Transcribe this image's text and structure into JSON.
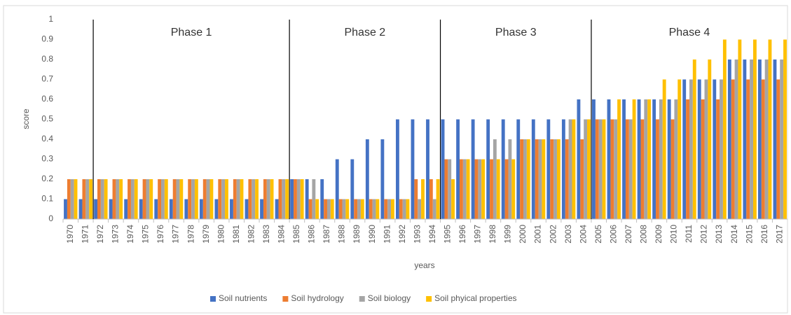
{
  "chart_data": {
    "type": "bar",
    "x_label": "years",
    "y_label": "score",
    "categories": [
      "1970",
      "1971",
      "1972",
      "1973",
      "1974",
      "1975",
      "1976",
      "1977",
      "1978",
      "1979",
      "1980",
      "1981",
      "1982",
      "1983",
      "1984",
      "1985",
      "1986",
      "1987",
      "1988",
      "1989",
      "1990",
      "1991",
      "1992",
      "1993",
      "1994",
      "1995",
      "1996",
      "1997",
      "1998",
      "1999",
      "2000",
      "2001",
      "2002",
      "2003",
      "2004",
      "2005",
      "2006",
      "2007",
      "2008",
      "2009",
      "2010",
      "2011",
      "2012",
      "2013",
      "2014",
      "2015",
      "2016",
      "2017"
    ],
    "series": [
      {
        "name": "Soil nutrients",
        "color": "#4472c4",
        "values": [
          0.1,
          0.1,
          0.1,
          0.1,
          0.1,
          0.1,
          0.1,
          0.1,
          0.1,
          0.1,
          0.1,
          0.1,
          0.1,
          0.1,
          0.1,
          0.2,
          0.2,
          0.2,
          0.3,
          0.3,
          0.4,
          0.4,
          0.5,
          0.5,
          0.5,
          0.5,
          0.5,
          0.5,
          0.5,
          0.5,
          0.5,
          0.5,
          0.5,
          0.5,
          0.6,
          0.6,
          0.6,
          0.6,
          0.6,
          0.6,
          0.6,
          0.7,
          0.7,
          0.7,
          0.8,
          0.8,
          0.8,
          0.8
        ]
      },
      {
        "name": "Soil hydrology",
        "color": "#ed7d31",
        "values": [
          0.2,
          0.2,
          0.2,
          0.2,
          0.2,
          0.2,
          0.2,
          0.2,
          0.2,
          0.2,
          0.2,
          0.2,
          0.2,
          0.2,
          0.2,
          0.2,
          0.1,
          0.1,
          0.1,
          0.1,
          0.1,
          0.1,
          0.1,
          0.2,
          0.2,
          0.3,
          0.3,
          0.3,
          0.3,
          0.3,
          0.4,
          0.4,
          0.4,
          0.4,
          0.4,
          0.5,
          0.5,
          0.5,
          0.5,
          0.5,
          0.5,
          0.6,
          0.6,
          0.6,
          0.7,
          0.7,
          0.7,
          0.7
        ]
      },
      {
        "name": "Soil biology",
        "color": "#a5a5a5",
        "values": [
          0.2,
          0.2,
          0.2,
          0.2,
          0.2,
          0.2,
          0.2,
          0.2,
          0.2,
          0.2,
          0.2,
          0.2,
          0.2,
          0.2,
          0.2,
          0.2,
          0.2,
          0.1,
          0.1,
          0.1,
          0.1,
          0.1,
          0.1,
          0.1,
          0.1,
          0.3,
          0.3,
          0.3,
          0.4,
          0.4,
          0.4,
          0.4,
          0.4,
          0.5,
          0.5,
          0.5,
          0.5,
          0.5,
          0.6,
          0.6,
          0.6,
          0.7,
          0.7,
          0.7,
          0.8,
          0.8,
          0.8,
          0.8
        ]
      },
      {
        "name": "Soil phyical properties",
        "color": "#ffc000",
        "values": [
          0.2,
          0.2,
          0.2,
          0.2,
          0.2,
          0.2,
          0.2,
          0.2,
          0.2,
          0.2,
          0.2,
          0.2,
          0.2,
          0.2,
          0.2,
          0.2,
          0.1,
          0.1,
          0.1,
          0.1,
          0.1,
          0.1,
          0.1,
          0.2,
          0.2,
          0.2,
          0.3,
          0.3,
          0.3,
          0.3,
          0.4,
          0.4,
          0.4,
          0.5,
          0.5,
          0.5,
          0.6,
          0.6,
          0.6,
          0.7,
          0.7,
          0.8,
          0.8,
          0.9,
          0.9,
          0.9,
          0.9,
          0.9
        ]
      }
    ],
    "phases": [
      {
        "label": "Phase 1",
        "start": "1972"
      },
      {
        "label": "Phase 2",
        "start": "1985"
      },
      {
        "label": "Phase 3",
        "start": "1995"
      },
      {
        "label": "Phase 4",
        "start": "2005"
      }
    ],
    "ylim": [
      0,
      1
    ],
    "yticks": [
      0,
      0.1,
      0.2,
      0.3,
      0.4,
      0.5,
      0.6,
      0.7,
      0.8,
      0.9,
      1
    ],
    "grid": false,
    "legend": "bottom"
  }
}
